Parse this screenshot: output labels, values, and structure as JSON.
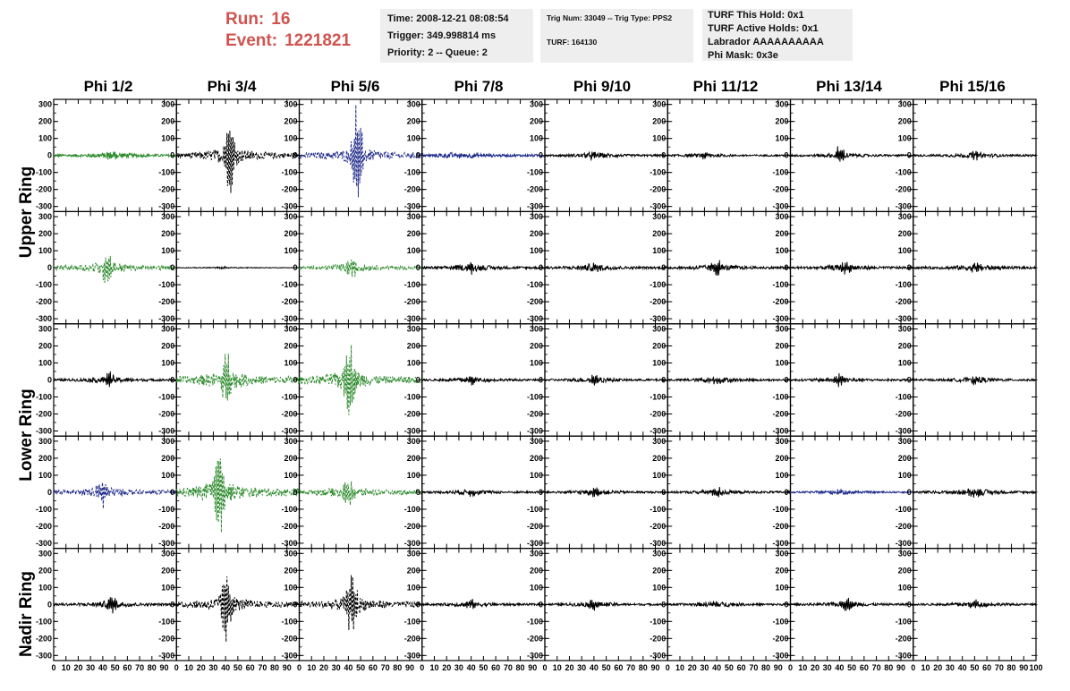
{
  "header": {
    "run_label": "Run:",
    "run_value": "16",
    "event_label": "Event:",
    "event_value": "1221821"
  },
  "info_time": {
    "time": "Time: 2008-12-21 08:08:54",
    "trigger": "Trigger: 349.998814 ms",
    "priority": "Priority: 2 -- Queue: 2"
  },
  "info_trig": {
    "trig": "Trig Num: 33049 -- Trig Type: PPS2",
    "turf": "TURF: 164130"
  },
  "info_turf": {
    "hold": "TURF This Hold: 0x1",
    "active": "TURF Active Holds: 0x1",
    "labrador": "Labrador AAAAAAAAAA",
    "mask": "Phi Mask: 0x3e"
  },
  "columns": [
    "Phi 1/2",
    "Phi 3/4",
    "Phi 5/6",
    "Phi 7/8",
    "Phi 9/10",
    "Phi 11/12",
    "Phi 13/14",
    "Phi 15/16"
  ],
  "rings": [
    "Upper Ring",
    "Lower Ring",
    "Nadir Ring"
  ],
  "chart_data": {
    "type": "line",
    "title": "",
    "xlabel": "",
    "ylabel": "",
    "xlim": [
      0,
      100
    ],
    "ylim": [
      -330,
      330
    ],
    "x_ticks": [
      0,
      10,
      20,
      30,
      40,
      50,
      60,
      70,
      80,
      90,
      100
    ],
    "y_ticks": [
      300,
      200,
      100,
      0,
      -100,
      -200,
      -300
    ],
    "colors": {
      "green": "#2e8b2e",
      "blue": "#1f2a8a",
      "black": "#000000"
    },
    "rows": 5,
    "cols": 8,
    "panels": [
      [
        {
          "color": "green",
          "style": "solid",
          "noise": 12,
          "peak": 30,
          "peak_x": 47
        },
        {
          "color": "black",
          "style": "dashed",
          "noise": 30,
          "peak": 240,
          "peak_x": 43
        },
        {
          "color": "blue",
          "style": "dashed",
          "noise": 28,
          "peak": 290,
          "peak_x": 47
        },
        {
          "color": "blue",
          "style": "solid",
          "noise": 12,
          "peak": 25,
          "peak_x": 30
        },
        {
          "color": "black",
          "style": "solid",
          "noise": 10,
          "peak": 25,
          "peak_x": 40
        },
        {
          "color": "black",
          "style": "solid",
          "noise": 8,
          "peak": 20,
          "peak_x": 30
        },
        {
          "color": "black",
          "style": "solid",
          "noise": 10,
          "peak": 50,
          "peak_x": 40
        },
        {
          "color": "black",
          "style": "solid",
          "noise": 10,
          "peak": 25,
          "peak_x": 50
        }
      ],
      [
        {
          "color": "green",
          "style": "dashed",
          "noise": 22,
          "peak": 100,
          "peak_x": 43
        },
        {
          "color": "black",
          "style": "solid",
          "noise": 3,
          "peak": 4,
          "peak_x": 40
        },
        {
          "color": "green",
          "style": "dashed",
          "noise": 16,
          "peak": 60,
          "peak_x": 43
        },
        {
          "color": "black",
          "style": "solid",
          "noise": 12,
          "peak": 30,
          "peak_x": 40
        },
        {
          "color": "black",
          "style": "solid",
          "noise": 12,
          "peak": 25,
          "peak_x": 40
        },
        {
          "color": "black",
          "style": "solid",
          "noise": 12,
          "peak": 40,
          "peak_x": 40
        },
        {
          "color": "black",
          "style": "solid",
          "noise": 12,
          "peak": 30,
          "peak_x": 45
        },
        {
          "color": "black",
          "style": "solid",
          "noise": 12,
          "peak": 30,
          "peak_x": 50
        }
      ],
      [
        {
          "color": "black",
          "style": "solid",
          "noise": 12,
          "peak": 40,
          "peak_x": 45
        },
        {
          "color": "green",
          "style": "dashed",
          "noise": 35,
          "peak": 160,
          "peak_x": 40
        },
        {
          "color": "green",
          "style": "dashed",
          "noise": 35,
          "peak": 230,
          "peak_x": 40
        },
        {
          "color": "black",
          "style": "solid",
          "noise": 10,
          "peak": 25,
          "peak_x": 40
        },
        {
          "color": "black",
          "style": "solid",
          "noise": 10,
          "peak": 25,
          "peak_x": 40
        },
        {
          "color": "black",
          "style": "solid",
          "noise": 10,
          "peak": 25,
          "peak_x": 40
        },
        {
          "color": "black",
          "style": "solid",
          "noise": 10,
          "peak": 35,
          "peak_x": 40
        },
        {
          "color": "black",
          "style": "solid",
          "noise": 10,
          "peak": 25,
          "peak_x": 50
        }
      ],
      [
        {
          "color": "blue",
          "style": "dashed",
          "noise": 20,
          "peak": 80,
          "peak_x": 40
        },
        {
          "color": "green",
          "style": "dashed",
          "noise": 40,
          "peak": 310,
          "peak_x": 35
        },
        {
          "color": "green",
          "style": "dashed",
          "noise": 22,
          "peak": 80,
          "peak_x": 40
        },
        {
          "color": "black",
          "style": "solid",
          "noise": 10,
          "peak": 25,
          "peak_x": 40
        },
        {
          "color": "black",
          "style": "solid",
          "noise": 10,
          "peak": 25,
          "peak_x": 40
        },
        {
          "color": "black",
          "style": "solid",
          "noise": 10,
          "peak": 25,
          "peak_x": 40
        },
        {
          "color": "blue",
          "style": "solid",
          "noise": 8,
          "peak": 15,
          "peak_x": 40
        },
        {
          "color": "black",
          "style": "solid",
          "noise": 12,
          "peak": 30,
          "peak_x": 50
        }
      ],
      [
        {
          "color": "black",
          "style": "solid",
          "noise": 12,
          "peak": 50,
          "peak_x": 47
        },
        {
          "color": "black",
          "style": "dashed",
          "noise": 30,
          "peak": 200,
          "peak_x": 40
        },
        {
          "color": "black",
          "style": "dashed",
          "noise": 30,
          "peak": 170,
          "peak_x": 43
        },
        {
          "color": "black",
          "style": "solid",
          "noise": 10,
          "peak": 25,
          "peak_x": 40
        },
        {
          "color": "black",
          "style": "solid",
          "noise": 10,
          "peak": 25,
          "peak_x": 40
        },
        {
          "color": "black",
          "style": "solid",
          "noise": 10,
          "peak": 25,
          "peak_x": 40
        },
        {
          "color": "black",
          "style": "solid",
          "noise": 10,
          "peak": 40,
          "peak_x": 45
        },
        {
          "color": "black",
          "style": "solid",
          "noise": 10,
          "peak": 25,
          "peak_x": 50
        }
      ]
    ]
  }
}
